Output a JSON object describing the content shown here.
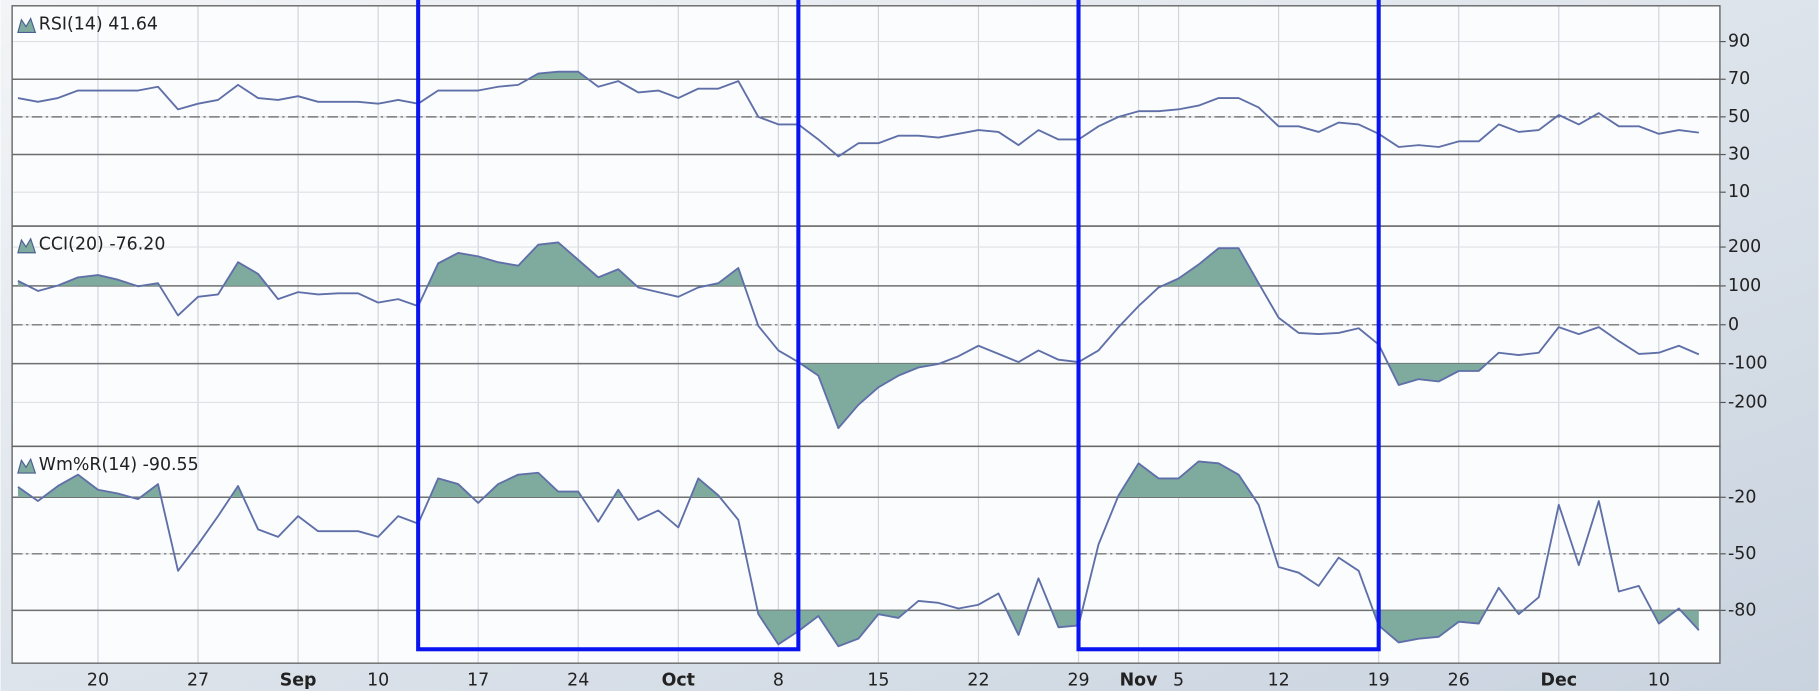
{
  "chart_data": [
    {
      "type": "line",
      "title": "RSI(14) 41.64",
      "color": "#5f6fa8",
      "fill_color": "#7fab9f",
      "ylim": [
        -8,
        109
      ],
      "yticks": [
        10,
        30,
        50,
        70,
        90
      ],
      "bands": [
        30,
        70
      ],
      "centerline": 50,
      "values": [
        60,
        58,
        60,
        64,
        64,
        64,
        64,
        66,
        54,
        57,
        59,
        67,
        60,
        59,
        61,
        58,
        58,
        58,
        57,
        59,
        57,
        64,
        64,
        64,
        66,
        67,
        73,
        74,
        74,
        66,
        69,
        63,
        64,
        60,
        65,
        65,
        69,
        50,
        46,
        46,
        38,
        29,
        36,
        36,
        40,
        40,
        39,
        41,
        43,
        42,
        35,
        43,
        38,
        38,
        45,
        50,
        53,
        53,
        54,
        56,
        60,
        60,
        55,
        45,
        45,
        42,
        47,
        46,
        41,
        34,
        35,
        34,
        37,
        37,
        46,
        42,
        43,
        51,
        46,
        52,
        45,
        45,
        41,
        43,
        41.64
      ]
    },
    {
      "type": "line",
      "title": "CCI(20) -76.20",
      "color": "#5f6fa8",
      "fill_color": "#7fab9f",
      "ylim": [
        -313,
        254
      ],
      "yticks": [
        -200,
        -100,
        0,
        100,
        200
      ],
      "bands": [
        -100,
        100
      ],
      "centerline": 0,
      "values": [
        113,
        87,
        101,
        122,
        128,
        116,
        99,
        107,
        24,
        72,
        78,
        161,
        131,
        66,
        84,
        78,
        81,
        81,
        57,
        66,
        48,
        158,
        185,
        176,
        161,
        152,
        206,
        212,
        167,
        122,
        143,
        96,
        84,
        72,
        96,
        107,
        146,
        -3,
        -66,
        -96,
        -131,
        -266,
        -206,
        -161,
        -131,
        -110,
        -101,
        -81,
        -54,
        -75,
        -96,
        -66,
        -90,
        -96,
        -66,
        -6,
        48,
        96,
        119,
        155,
        197,
        197,
        107,
        18,
        -21,
        -24,
        -21,
        -9,
        -51,
        -155,
        -140,
        -146,
        -119,
        -119,
        -72,
        -78,
        -72,
        -6,
        -24,
        -6,
        -42,
        -75,
        -72,
        -54,
        -76.2
      ]
    },
    {
      "type": "line",
      "title": "Wm%R(14) -90.55",
      "color": "#5f6fa8",
      "fill_color": "#7fab9f",
      "ylim": [
        -108,
        7
      ],
      "yticks": [
        -80,
        -50,
        -20
      ],
      "bands": [
        -80,
        -20
      ],
      "centerline": -50,
      "categories": [
        null,
        null,
        null,
        null,
        "20",
        null,
        null,
        null,
        null,
        "27",
        null,
        null,
        null,
        null,
        "Sep",
        null,
        null,
        null,
        "10",
        null,
        null,
        null,
        null,
        "17",
        null,
        null,
        null,
        null,
        "24",
        null,
        null,
        null,
        null,
        "Oct",
        null,
        null,
        null,
        null,
        "8",
        null,
        null,
        null,
        null,
        "15",
        null,
        null,
        null,
        null,
        "22",
        null,
        null,
        null,
        null,
        "29",
        null,
        null,
        "Nov",
        null,
        "5",
        null,
        null,
        null,
        null,
        "12",
        null,
        null,
        null,
        null,
        "19",
        null,
        null,
        null,
        "26",
        null,
        null,
        null,
        null,
        "Dec",
        null,
        null,
        null,
        null,
        "10",
        null,
        null
      ],
      "values": [
        -14.5,
        -22,
        -14,
        -8,
        -16,
        -18,
        -21,
        -13,
        -59,
        -45,
        -30,
        -14,
        -37,
        -41,
        -30,
        -38,
        -38,
        -38,
        -41,
        -30,
        -34,
        -10,
        -13,
        -23,
        -13,
        -8,
        -7,
        -17,
        -17,
        -33,
        -16,
        -32,
        -27,
        -36,
        -10,
        -19,
        -32,
        -82,
        -98,
        -91,
        -83,
        -99,
        -95,
        -82,
        -84,
        -75,
        -76,
        -79,
        -77,
        -71,
        -93,
        -63,
        -89,
        -88,
        -45,
        -19,
        -2,
        -10,
        -10,
        -1,
        -2,
        -8,
        -24,
        -57,
        -60,
        -67,
        -52,
        -59,
        -88,
        -97,
        -95,
        -94,
        -86,
        -87,
        -68,
        -82,
        -73,
        -24,
        -56,
        -22,
        -70,
        -67,
        -87,
        -79,
        -90.55
      ]
    }
  ],
  "highlights": [
    {
      "from": 20,
      "to": 39
    },
    {
      "from": 53,
      "to": 68
    }
  ]
}
